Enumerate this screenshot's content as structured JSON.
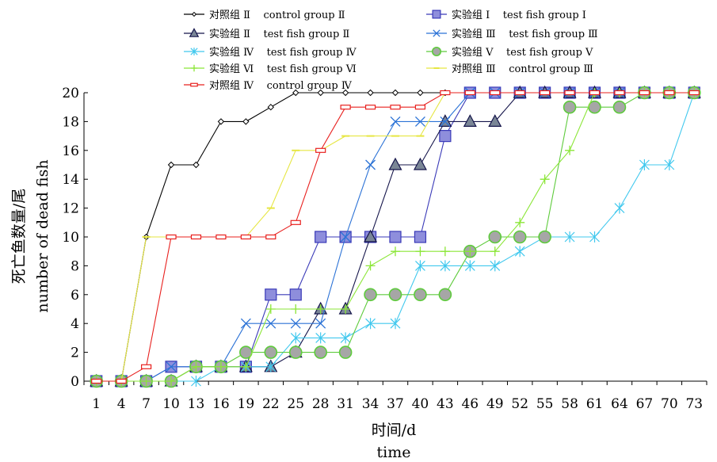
{
  "chart_data": {
    "type": "line",
    "xlabel": "时间/d",
    "xlabel_en": "time",
    "ylabel": "死亡鱼数量/尾",
    "ylabel_en": "number of dead fish",
    "ylim": [
      0,
      20
    ],
    "ytick_step": 2,
    "grid": false,
    "legend_position": "top",
    "categories": [
      "1",
      "4",
      "7",
      "10",
      "13",
      "16",
      "19",
      "22",
      "25",
      "28",
      "31",
      "34",
      "37",
      "40",
      "43",
      "46",
      "49",
      "52",
      "55",
      "58",
      "61",
      "64",
      "67",
      "70",
      "73"
    ],
    "series": [
      {
        "name": "对照组 Ⅱ    control group Ⅱ",
        "color": "#000000",
        "marker": "diamond",
        "values": [
          0,
          0,
          10,
          15,
          15,
          18,
          18,
          19,
          20,
          20,
          20,
          20,
          20,
          20,
          20,
          20,
          20,
          20,
          20,
          20,
          20,
          20,
          20,
          20,
          20
        ]
      },
      {
        "name": "实验组 Ⅰ    test fish group Ⅰ",
        "color": "#3A3AB8",
        "marker": "square",
        "values": [
          0,
          0,
          0,
          1,
          1,
          1,
          1,
          6,
          6,
          10,
          10,
          10,
          10,
          10,
          17,
          20,
          20,
          20,
          20,
          20,
          20,
          20,
          20,
          20,
          20
        ]
      },
      {
        "name": "实验组 Ⅱ    test fish group Ⅱ",
        "color": "#14144A",
        "marker": "triangle",
        "values": [
          0,
          0,
          0,
          0,
          1,
          1,
          1,
          1,
          2,
          5,
          5,
          10,
          15,
          15,
          18,
          18,
          18,
          20,
          20,
          20,
          20,
          20,
          20,
          20,
          20
        ]
      },
      {
        "name": "实验组 Ⅲ    test fish group Ⅲ",
        "color": "#2B72D6",
        "marker": "x",
        "values": [
          0,
          0,
          0,
          1,
          1,
          1,
          4,
          4,
          4,
          4,
          10,
          15,
          18,
          18,
          18,
          20,
          20,
          20,
          20,
          20,
          20,
          20,
          20,
          20,
          20
        ]
      },
      {
        "name": "实验组 Ⅳ    test fish group Ⅳ",
        "color": "#40C8EE",
        "marker": "star",
        "values": [
          0,
          0,
          0,
          0,
          0,
          1,
          1,
          1,
          3,
          3,
          3,
          4,
          4,
          8,
          8,
          8,
          8,
          9,
          10,
          10,
          10,
          12,
          15,
          15,
          20
        ]
      },
      {
        "name": "实验组 Ⅴ    test fish group Ⅴ",
        "color": "#5ECB3C",
        "marker": "circle",
        "values": [
          0,
          0,
          0,
          0,
          1,
          1,
          2,
          2,
          2,
          2,
          2,
          6,
          6,
          6,
          6,
          9,
          10,
          10,
          10,
          19,
          19,
          19,
          20,
          20,
          20
        ]
      },
      {
        "name": "实验组 Ⅵ    test fish group Ⅵ",
        "color": "#8BE637",
        "marker": "plus",
        "values": [
          0,
          0,
          0,
          0,
          1,
          1,
          1,
          5,
          5,
          5,
          5,
          8,
          9,
          9,
          9,
          9,
          9,
          11,
          14,
          16,
          20,
          20,
          20,
          20,
          20
        ]
      },
      {
        "name": "对照组 Ⅲ    control group Ⅲ",
        "color": "#E6E642",
        "marker": "dash",
        "values": [
          0,
          0,
          10,
          10,
          10,
          10,
          10,
          12,
          16,
          16,
          17,
          17,
          17,
          17,
          20,
          20,
          20,
          20,
          20,
          20,
          20,
          20,
          20,
          20,
          20
        ]
      },
      {
        "name": "对照组 Ⅳ    control group Ⅳ",
        "color": "#E8201E",
        "marker": "bar",
        "values": [
          0,
          0,
          1,
          10,
          10,
          10,
          10,
          10,
          11,
          16,
          19,
          19,
          19,
          19,
          20,
          20,
          20,
          20,
          20,
          20,
          20,
          20,
          20,
          20,
          20
        ]
      }
    ]
  }
}
